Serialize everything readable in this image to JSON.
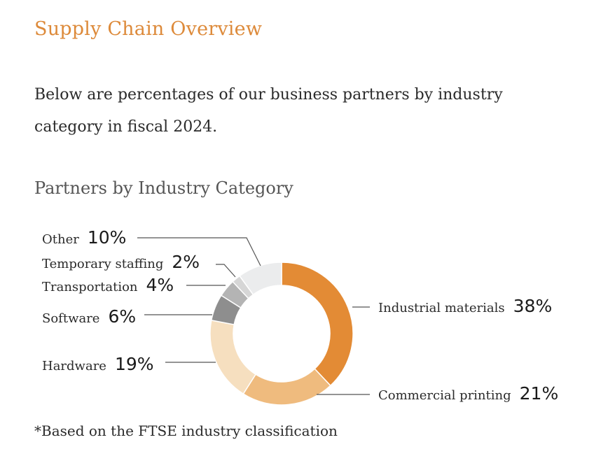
{
  "page": {
    "title": "Supply Chain Overview",
    "intro": "Below are percentages of our business partners by industry category in fiscal 2024.",
    "footnote": "*Based on the FTSE industry classification"
  },
  "chart_data": {
    "type": "pie",
    "subtype": "donut",
    "title": "Partners by Industry Category",
    "start_angle": "12 o'clock, clockwise",
    "categories": [
      "Industrial materials",
      "Commercial printing",
      "Hardware",
      "Software",
      "Transportation",
      "Temporary staffing",
      "Other"
    ],
    "values": [
      38,
      21,
      19,
      6,
      4,
      2,
      10
    ],
    "value_labels": [
      "38%",
      "21%",
      "19%",
      "6%",
      "4%",
      "2%",
      "10%"
    ],
    "colors": [
      "#e38b35",
      "#efbb7e",
      "#f6dfbf",
      "#8e8e8e",
      "#b4b4b4",
      "#d6d6d6",
      "#ebeced"
    ],
    "legend": "leader-line labels beside slices"
  }
}
